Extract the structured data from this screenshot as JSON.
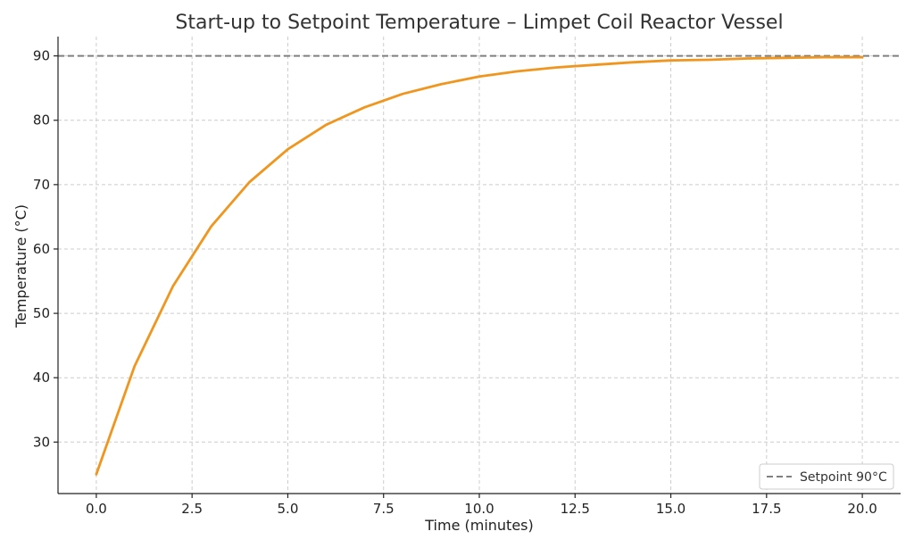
{
  "chart_data": {
    "type": "line",
    "title": "Start-up to Setpoint Temperature – Limpet Coil Reactor Vessel",
    "xlabel": "Time (minutes)",
    "ylabel": "Temperature (°C)",
    "xlim": [
      -1,
      21
    ],
    "ylim": [
      22,
      93
    ],
    "xticks": [
      0.0,
      2.5,
      5.0,
      7.5,
      10.0,
      12.5,
      15.0,
      17.5,
      20.0
    ],
    "xtick_labels": [
      "0.0",
      "2.5",
      "5.0",
      "7.5",
      "10.0",
      "12.5",
      "15.0",
      "17.5",
      "20.0"
    ],
    "yticks": [
      30,
      40,
      50,
      60,
      70,
      80,
      90
    ],
    "ytick_labels": [
      "30",
      "40",
      "50",
      "60",
      "70",
      "80",
      "90"
    ],
    "grid": true,
    "legend_position": "bottom-right",
    "series": [
      {
        "color": "#f0961e",
        "x": [
          0,
          1,
          2,
          3,
          4,
          5,
          6,
          7,
          8,
          9,
          10,
          11,
          12,
          13,
          14,
          15,
          16,
          17,
          18,
          19,
          20
        ],
        "y": [
          25.0,
          41.8,
          54.2,
          63.5,
          70.4,
          75.5,
          79.3,
          82.0,
          84.1,
          85.6,
          86.8,
          87.6,
          88.2,
          88.6,
          89.0,
          89.3,
          89.4,
          89.6,
          89.7,
          89.8,
          89.8
        ]
      }
    ],
    "reference_lines": [
      {
        "name": "Setpoint 90°C",
        "y": 90,
        "color": "#808080",
        "style": "dashed"
      }
    ]
  }
}
